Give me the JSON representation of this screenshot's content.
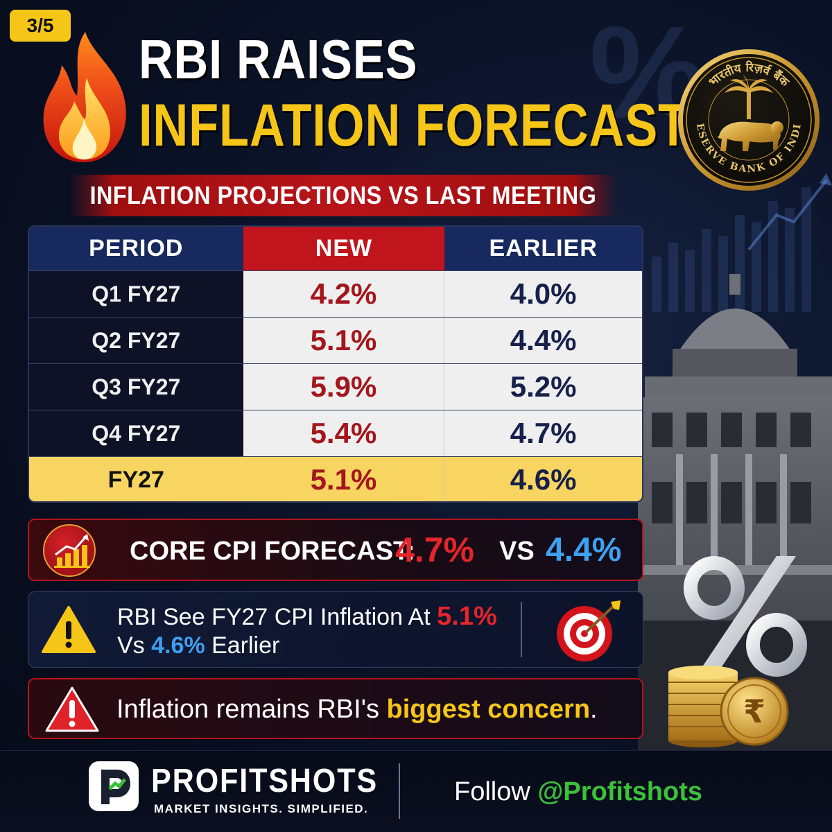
{
  "badge": "3/5",
  "title": {
    "line1": "RBI RAISES",
    "line2": "INFLATION FORECASTS"
  },
  "subtitle": "INFLATION PROJECTIONS VS LAST MEETING",
  "seal": {
    "text_top": "भारतीय रिज़र्व बैंक",
    "text_bottom": "RESERVE BANK OF INDIA"
  },
  "table": {
    "headers": [
      "PERIOD",
      "NEW",
      "EARLIER"
    ],
    "rows": [
      {
        "period": "Q1 FY27",
        "new": "4.2%",
        "earlier": "4.0%"
      },
      {
        "period": "Q2 FY27",
        "new": "5.1%",
        "earlier": "4.4%"
      },
      {
        "period": "Q3 FY27",
        "new": "5.9%",
        "earlier": "5.2%"
      },
      {
        "period": "Q4 FY27",
        "new": "5.4%",
        "earlier": "4.7%"
      },
      {
        "period": "FY27",
        "new": "5.1%",
        "earlier": "4.6%"
      }
    ]
  },
  "core_cpi": {
    "label": "CORE CPI FORECAST:",
    "new": "4.7%",
    "vs": "VS",
    "earlier": "4.4%",
    "icon": "bar-chart-up-icon"
  },
  "note": {
    "prefix": "RBI See FY27 CPI Inflation At",
    "new": "5.1%",
    "line2_prefix": "Vs",
    "earlier": "4.6%",
    "line2_suffix": "Earlier",
    "icons": [
      "warning-icon",
      "target-icon"
    ]
  },
  "concern": {
    "prefix": "Inflation remains RBI's",
    "highlight": "biggest concern",
    "suffix": ".",
    "icon": "alert-icon"
  },
  "decor": {
    "bg_percent": "%",
    "rupee": "₹"
  },
  "footer": {
    "brand": "PROFITSHOTS",
    "tagline": "MARKET INSIGHTS. SIMPLIFIED.",
    "follow_label": "Follow",
    "handle": "@Profitshots"
  },
  "colors": {
    "accent_yellow": "#f5c518",
    "accent_red": "#c0151c",
    "navy": "#17295e",
    "blue": "#3fa0f0",
    "green": "#3bc03b"
  }
}
